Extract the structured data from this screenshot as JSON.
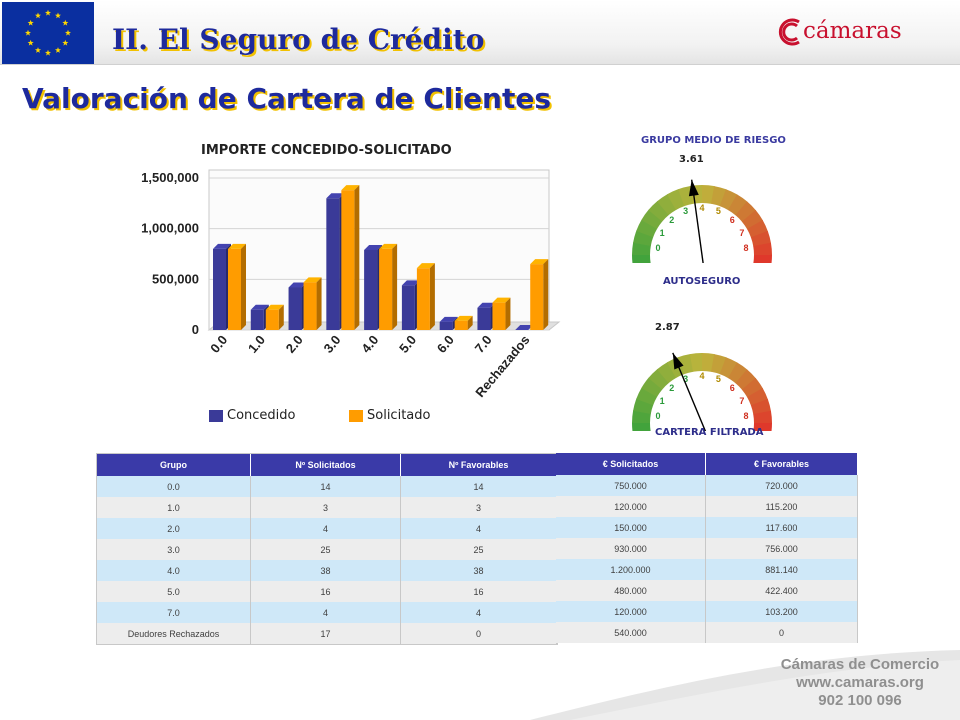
{
  "header": {
    "title": "II. El Seguro de Crédito",
    "subtitle": "Valoración de Cartera de Clientes",
    "logo_text": "cámaras"
  },
  "colors": {
    "title_blue": "#1e2a9c",
    "title_shadow": "#f2c100",
    "concedido": "#3a3a98",
    "solicitado": "#ff9c00",
    "table_header": "#3a3aa8",
    "row_blue": "#cfe8f8",
    "row_gray": "#ededed",
    "logo_red": "#c8102e"
  },
  "chart_data": [
    {
      "type": "bar",
      "title": "IMPORTE CONCEDIDO-SOLICITADO",
      "categories": [
        "0.0",
        "1.0",
        "2.0",
        "3.0",
        "4.0",
        "5.0",
        "6.0",
        "7.0",
        "Rechazados"
      ],
      "series": [
        {
          "name": "Concedido",
          "values": [
            800000,
            200000,
            420000,
            1300000,
            790000,
            440000,
            80000,
            220000,
            0
          ]
        },
        {
          "name": "Solicitado",
          "values": [
            800000,
            200000,
            470000,
            1380000,
            800000,
            610000,
            90000,
            270000,
            650000
          ]
        }
      ],
      "yticks": [
        "0",
        "500,000",
        "1,000,000",
        "1,500,000"
      ],
      "ylim": [
        0,
        1500000
      ],
      "legend_position": "bottom",
      "grid": true
    },
    {
      "type": "gauge",
      "title": "GRUPO MEDIO DE RIESGO",
      "scale_labels": [
        "0",
        "1",
        "2",
        "3",
        "4",
        "5",
        "6",
        "7",
        "8"
      ],
      "range": [
        0,
        8
      ],
      "gauges": [
        {
          "caption": "AUTOSEGURO",
          "value": 3.61,
          "value_label": "3.61"
        },
        {
          "caption": "CARTERA FILTRADA",
          "value": 2.87,
          "value_label": "2.87"
        }
      ]
    }
  ],
  "table_left": {
    "headers": [
      "Grupo",
      "Nº Solicitados",
      "Nº Favorables"
    ],
    "rows": [
      [
        "0.0",
        "14",
        "14"
      ],
      [
        "1.0",
        "3",
        "3"
      ],
      [
        "2.0",
        "4",
        "4"
      ],
      [
        "3.0",
        "25",
        "25"
      ],
      [
        "4.0",
        "38",
        "38"
      ],
      [
        "5.0",
        "16",
        "16"
      ],
      [
        "7.0",
        "4",
        "4"
      ],
      [
        "Deudores Rechazados",
        "17",
        "0"
      ]
    ]
  },
  "table_right": {
    "headers": [
      "€ Solicitados",
      "€ Favorables"
    ],
    "rows": [
      [
        "750.000",
        "720.000"
      ],
      [
        "120.000",
        "115.200"
      ],
      [
        "150.000",
        "117.600"
      ],
      [
        "930.000",
        "756.000"
      ],
      [
        "1.200.000",
        "881.140"
      ],
      [
        "480.000",
        "422.400"
      ],
      [
        "120.000",
        "103.200"
      ],
      [
        "540.000",
        "0"
      ]
    ]
  },
  "footer": {
    "line1": "Cámaras de Comercio",
    "line2": "www.camaras.org",
    "line3": "902 100 096"
  }
}
